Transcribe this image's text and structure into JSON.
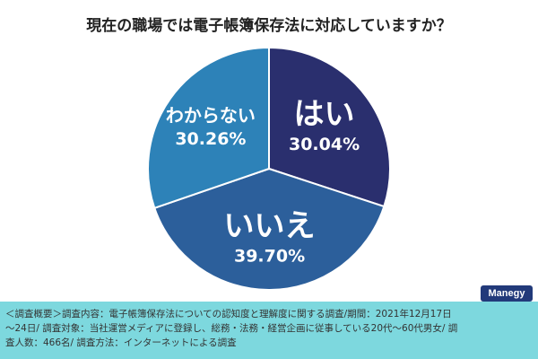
{
  "colors": {
    "background": "#ffffff",
    "footer_bg": "#7dd8de",
    "brand_bg": "#223a7a"
  },
  "chart_data": {
    "type": "pie",
    "title": "現在の職場では電子帳簿保存法に対応していますか？",
    "slices": [
      {
        "label": "はい",
        "value": 30.04,
        "value_label": "30.04%",
        "color": "#2a2f6e"
      },
      {
        "label": "いいえ",
        "value": 39.7,
        "value_label": "39.70%",
        "color": "#2c5f9b"
      },
      {
        "label": "わからない",
        "value": 30.26,
        "value_label": "30.26%",
        "color": "#2d82b8"
      }
    ],
    "start_angle_deg": 0,
    "direction": "clockwise"
  },
  "brand": "Manegy",
  "footer": {
    "line1": "＜調査概要＞調査内容：電子帳簿保存法についての認知度と理解度に関する調査/期間：2021年12月17日",
    "line2": "〜24日/ 調査対象：当社運営メディアに登録し、総務・法務・経営企画に従事している20代〜60代男女/ 調",
    "line3": "査人数：466名/ 調査方法：インターネットによる調査"
  }
}
